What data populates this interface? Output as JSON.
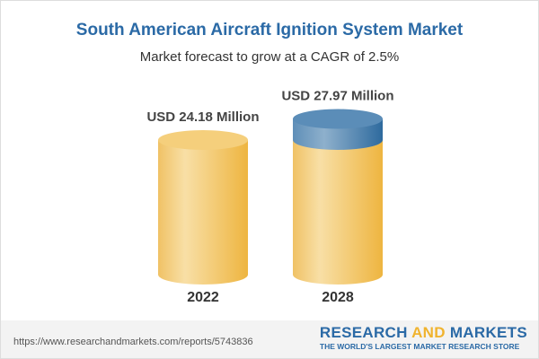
{
  "title": "South American Aircraft Ignition System Market",
  "subtitle": "Market forecast to grow at a CAGR of 2.5%",
  "chart_data": {
    "type": "bar",
    "categories": [
      "2022",
      "2028"
    ],
    "values": [
      24.18,
      27.97
    ],
    "data_labels": [
      "USD 24.18 Million",
      "USD 27.97 Million"
    ],
    "colors": {
      "base": "#f2c45e",
      "growth": "#4d86b5"
    }
  },
  "footer": {
    "url": "https://www.researchandmarkets.com/reports/5743836",
    "logo_part1": "RESEARCH ",
    "logo_part2": "AND",
    "logo_part3": " MARKETS",
    "tagline": "THE WORLD'S LARGEST MARKET RESEARCH STORE"
  }
}
